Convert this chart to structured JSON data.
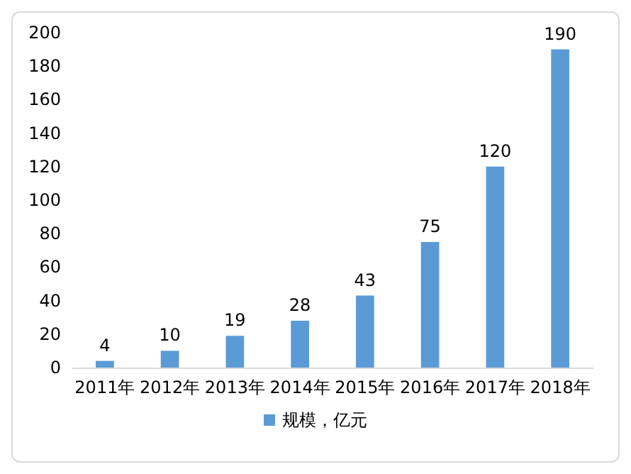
{
  "chart_data": {
    "type": "bar",
    "categories": [
      "2011年",
      "2012年",
      "2013年",
      "2014年",
      "2015年",
      "2016年",
      "2017年",
      "2018年"
    ],
    "series": [
      {
        "name": "规模，亿元",
        "color": "#5b9bd5",
        "values": [
          4,
          10,
          19,
          28,
          43,
          75,
          120,
          190
        ]
      }
    ],
    "ylim": [
      0,
      200
    ],
    "yticks": [
      0,
      20,
      40,
      60,
      80,
      100,
      120,
      140,
      160,
      180,
      200
    ],
    "grid": false,
    "legend": "bottom",
    "data_labels": true
  }
}
